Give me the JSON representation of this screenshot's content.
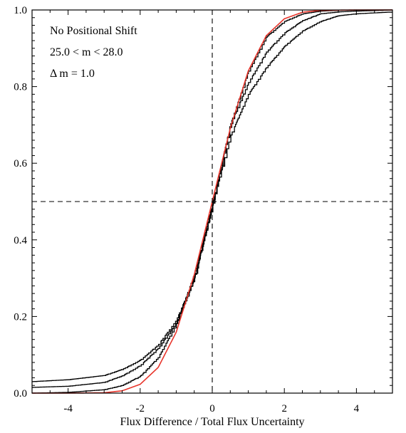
{
  "chart_data": {
    "type": "line",
    "title": "",
    "xlabel": "Flux Difference / Total Flux Uncertainty",
    "ylabel": "",
    "xlim": [
      -5,
      5
    ],
    "ylim": [
      0,
      1
    ],
    "grid": false,
    "x_ticks": [
      -4,
      -2,
      0,
      2,
      4
    ],
    "x_tick_labels": [
      "-4",
      "-2",
      "0",
      "2",
      "4"
    ],
    "y_ticks": [
      0.0,
      0.2,
      0.4,
      0.6,
      0.8,
      1.0
    ],
    "y_tick_labels": [
      "0.0",
      "0.2",
      "0.4",
      "0.6",
      "0.8",
      "1.0"
    ],
    "annotations": [
      "No Positional Shift",
      "25.0 < m < 28.0",
      "Δ m = 1.0"
    ],
    "reference_lines": [
      {
        "axis": "x",
        "value": 0,
        "style": "dashed"
      },
      {
        "axis": "y",
        "value": 0.5,
        "style": "dashed"
      }
    ],
    "series": [
      {
        "style": "step",
        "color": "#000000",
        "tail_low": 0.03,
        "tail_high": 0.995,
        "scale": 0.7,
        "x": [
          -5.0,
          -4.0,
          -3.0,
          -2.5,
          -2.0,
          -1.5,
          -1.0,
          -0.5,
          0.0,
          0.5,
          1.0,
          1.5,
          2.0,
          2.5,
          3.0,
          3.5,
          4.0,
          5.0
        ],
        "y": [
          0.03,
          0.035,
          0.046,
          0.062,
          0.086,
          0.126,
          0.19,
          0.3,
          0.49,
          0.67,
          0.78,
          0.85,
          0.905,
          0.945,
          0.97,
          0.985,
          0.99,
          0.995
        ]
      },
      {
        "style": "step",
        "color": "#000000",
        "tail_low": 0.015,
        "tail_high": 1.0,
        "scale": 0.62,
        "x": [
          -5.0,
          -4.0,
          -3.0,
          -2.5,
          -2.0,
          -1.5,
          -1.0,
          -0.5,
          0.0,
          0.5,
          1.0,
          1.5,
          2.0,
          2.5,
          3.0,
          3.5,
          4.0,
          5.0
        ],
        "y": [
          0.015,
          0.018,
          0.028,
          0.045,
          0.072,
          0.117,
          0.183,
          0.3,
          0.49,
          0.7,
          0.81,
          0.89,
          0.94,
          0.972,
          0.99,
          0.995,
          0.997,
          1.0
        ]
      },
      {
        "style": "step",
        "color": "#000000",
        "tail_low": 0.0,
        "tail_high": 1.0,
        "scale": 0.52,
        "x": [
          -5.0,
          -4.0,
          -3.0,
          -2.5,
          -2.0,
          -1.5,
          -1.0,
          -0.5,
          0.0,
          0.5,
          1.0,
          1.5,
          2.0,
          2.5,
          3.0,
          3.5,
          4.0,
          5.0
        ],
        "y": [
          0.0,
          0.002,
          0.009,
          0.02,
          0.044,
          0.093,
          0.18,
          0.31,
          0.49,
          0.7,
          0.84,
          0.93,
          0.97,
          0.99,
          0.997,
          0.999,
          1.0,
          1.0
        ]
      },
      {
        "style": "smooth",
        "color": "#e8352b",
        "x": [
          -5.0,
          -4.0,
          -3.0,
          -2.5,
          -2.0,
          -1.5,
          -1.0,
          -0.5,
          0.0,
          0.5,
          1.0,
          1.5,
          2.0,
          2.5,
          3.0,
          4.0,
          5.0
        ],
        "y": [
          0.0,
          0.0,
          0.001,
          0.006,
          0.023,
          0.067,
          0.159,
          0.309,
          0.5,
          0.691,
          0.841,
          0.933,
          0.977,
          0.994,
          0.999,
          1.0,
          1.0
        ]
      }
    ]
  }
}
